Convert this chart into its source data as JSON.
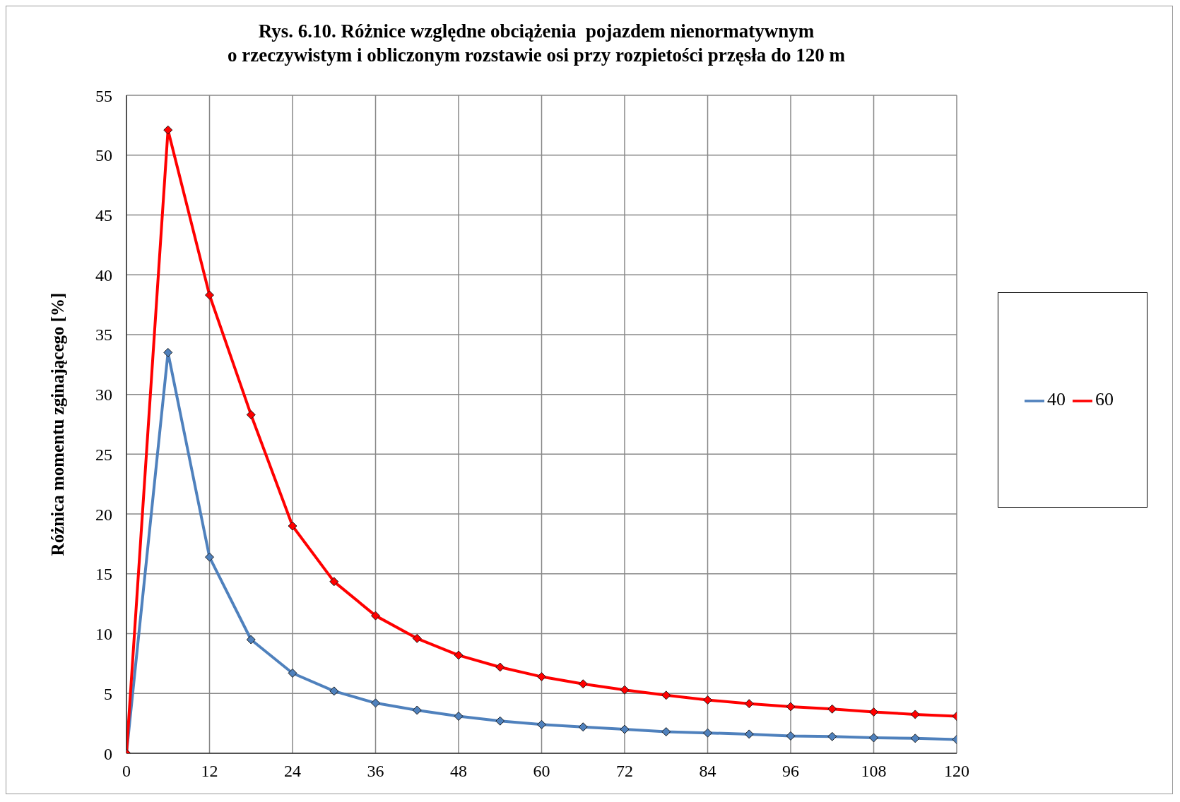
{
  "chart_data": {
    "type": "line",
    "title": "Rys. 6.10. Różnice względne obciążenia  pojazdem nienormatywnym\no rzeczywistym i obliczonym rozstawie osi przy rozpietości przęsła do 120 m",
    "ylabel": "Różnica momentu zginającego [%]",
    "x": [
      0,
      6,
      12,
      18,
      24,
      30,
      36,
      42,
      48,
      54,
      60,
      66,
      72,
      78,
      84,
      90,
      96,
      102,
      108,
      114,
      120
    ],
    "series": [
      {
        "name": "40",
        "color": "#4f81bd",
        "values": [
          0,
          33.5,
          16.4,
          9.5,
          6.7,
          5.2,
          4.2,
          3.6,
          3.1,
          2.7,
          2.4,
          2.2,
          2.0,
          1.8,
          1.7,
          1.6,
          1.45,
          1.4,
          1.3,
          1.25,
          1.15
        ]
      },
      {
        "name": "60",
        "color": "#ff0000",
        "values": [
          0,
          52.1,
          38.3,
          28.3,
          19.0,
          14.35,
          11.5,
          9.6,
          8.2,
          7.2,
          6.4,
          5.8,
          5.3,
          4.85,
          4.45,
          4.15,
          3.9,
          3.7,
          3.45,
          3.25,
          3.1
        ]
      }
    ],
    "xlim": [
      0,
      120
    ],
    "xticks": [
      0,
      12,
      24,
      36,
      48,
      60,
      72,
      84,
      96,
      108,
      120
    ],
    "ylim": [
      0,
      55
    ],
    "yticks": [
      0,
      5,
      10,
      15,
      20,
      25,
      30,
      35,
      40,
      45,
      50,
      55
    ],
    "grid": true,
    "legend": "right",
    "marker": "diamond",
    "line_style": "solid"
  }
}
